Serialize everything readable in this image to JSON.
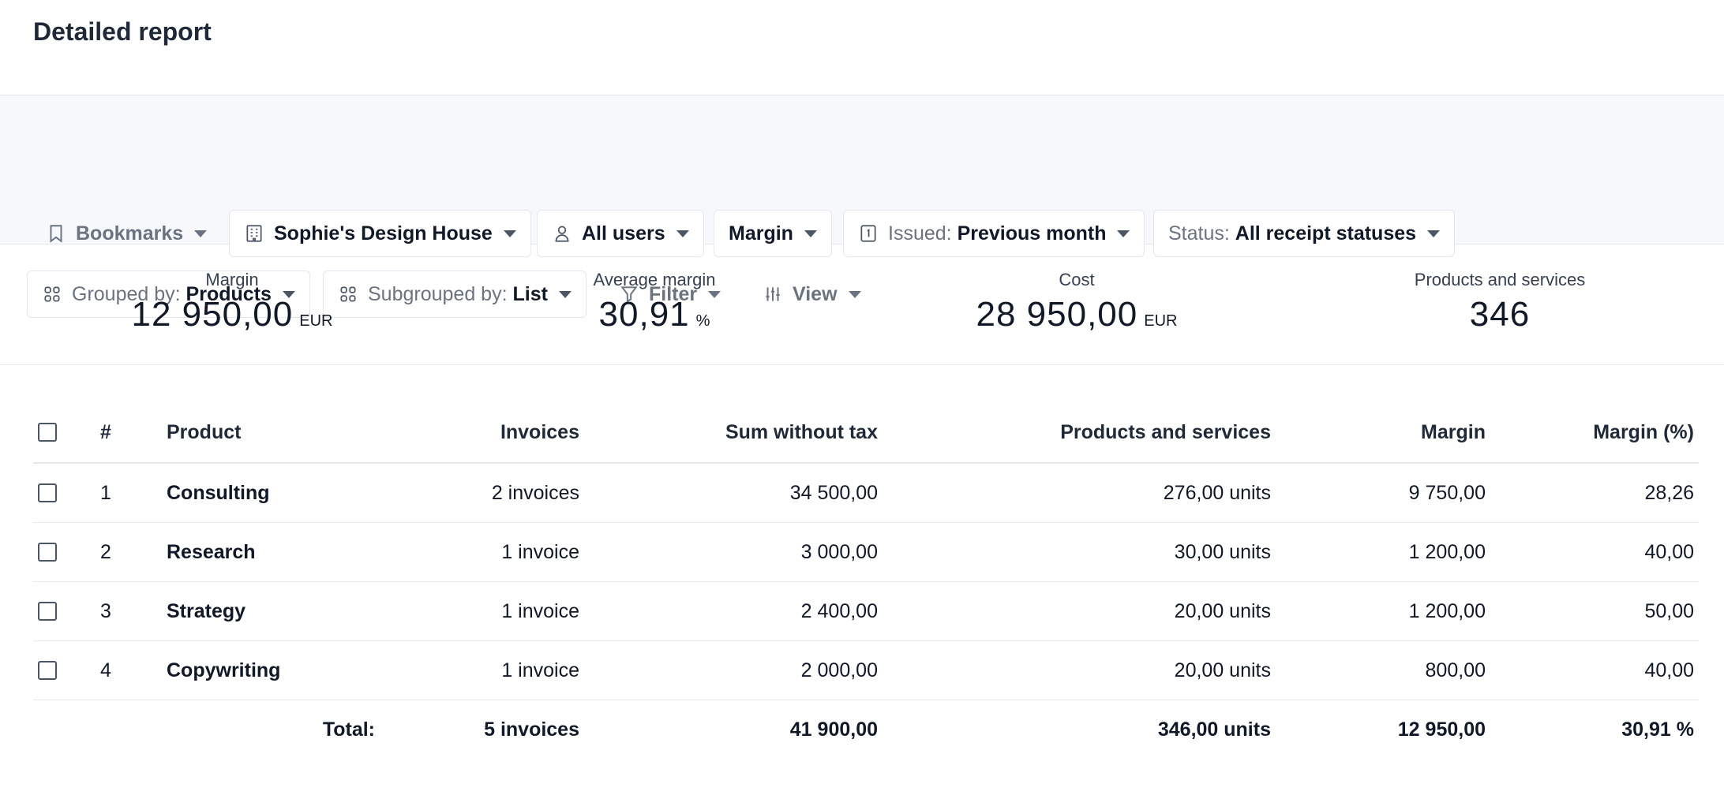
{
  "page": {
    "title": "Detailed report"
  },
  "toolbar": {
    "bookmarks": {
      "label": "Bookmarks",
      "icon": "bookmark-icon"
    },
    "company": {
      "label": "Sophie's Design House",
      "icon": "building-icon"
    },
    "users": {
      "label": "All users",
      "icon": "user-icon"
    },
    "metric": {
      "label": "Margin"
    },
    "issued": {
      "prefix": "Issued:",
      "value": "Previous month",
      "icon": "calendar-icon"
    },
    "status": {
      "prefix": "Status:",
      "value": "All receipt statuses"
    },
    "grouped": {
      "prefix": "Grouped by:",
      "value": "Products",
      "icon": "grid-icon"
    },
    "subgrouped": {
      "prefix": "Subgrouped by:",
      "value": "List",
      "icon": "grid-icon"
    },
    "filter": {
      "label": "Filter",
      "icon": "filter-icon"
    },
    "view": {
      "label": "View",
      "icon": "sliders-icon"
    }
  },
  "stats": {
    "margin": {
      "label": "Margin",
      "value": "12 950,00",
      "unit": "EUR"
    },
    "average_margin": {
      "label": "Average margin",
      "value": "30,91",
      "unit": "%"
    },
    "cost": {
      "label": "Cost",
      "value": "28 950,00",
      "unit": "EUR"
    },
    "products": {
      "label": "Products and services",
      "value": "346"
    }
  },
  "table": {
    "headers": {
      "num": "#",
      "product": "Product",
      "invoices": "Invoices",
      "sum": "Sum without tax",
      "products": "Products and services",
      "margin": "Margin",
      "margin_pct": "Margin (%)"
    },
    "rows": [
      {
        "num": "1",
        "product": "Consulting",
        "invoices": "2 invoices",
        "sum": "34 500,00",
        "products": "276,00 units",
        "margin": "9 750,00",
        "margin_pct": "28,26"
      },
      {
        "num": "2",
        "product": "Research",
        "invoices": "1 invoice",
        "sum": "3 000,00",
        "products": "30,00 units",
        "margin": "1 200,00",
        "margin_pct": "40,00"
      },
      {
        "num": "3",
        "product": "Strategy",
        "invoices": "1 invoice",
        "sum": "2 400,00",
        "products": "20,00 units",
        "margin": "1 200,00",
        "margin_pct": "50,00"
      },
      {
        "num": "4",
        "product": "Copywriting",
        "invoices": "1 invoice",
        "sum": "2 000,00",
        "products": "20,00 units",
        "margin": "800,00",
        "margin_pct": "40,00"
      }
    ],
    "total": {
      "label": "Total:",
      "invoices": "5 invoices",
      "sum": "41 900,00",
      "products": "346,00 units",
      "margin": "12 950,00",
      "margin_pct": "30,91 %"
    }
  }
}
